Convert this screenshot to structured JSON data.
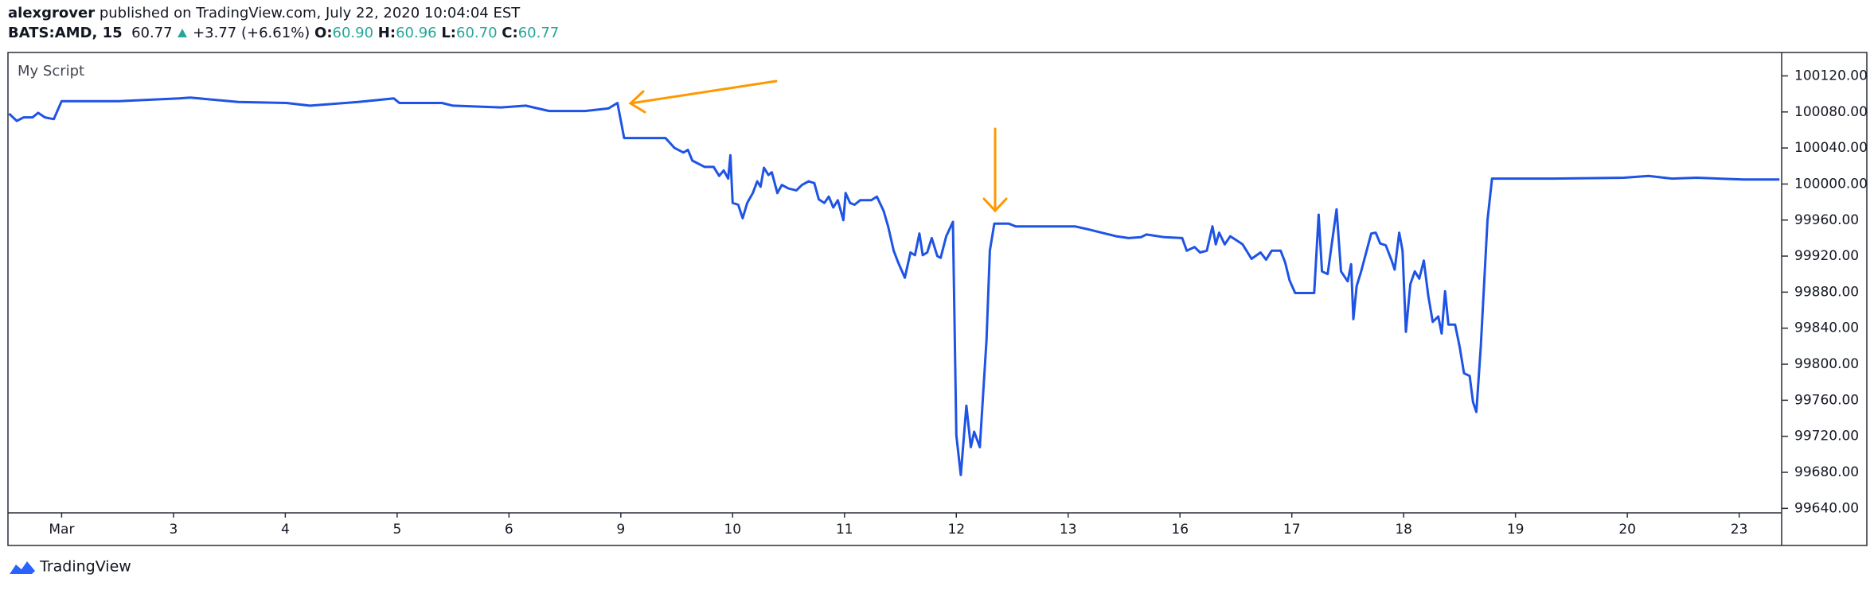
{
  "header": {
    "author": "alexgrover",
    "published": "published on TradingView.com, July 22, 2020 10:04:04 EST",
    "symbol": "BATS:AMD, 15",
    "last": "60.77",
    "change": "+3.77 (+6.61%)",
    "ohlc": [
      {
        "label": "O:",
        "value": "60.90"
      },
      {
        "label": "H:",
        "value": "60.96"
      },
      {
        "label": "L:",
        "value": "60.70"
      },
      {
        "label": "C:",
        "value": "60.77"
      }
    ]
  },
  "footer": {
    "brand": "TradingView"
  },
  "chart_data": {
    "type": "line",
    "x": [
      -0.47,
      -0.4,
      -0.34,
      -0.26,
      -0.21,
      -0.15,
      -0.07,
      0,
      0.51,
      1.05,
      1.15,
      1.58,
      2.01,
      2.22,
      2.65,
      2.97,
      3.02,
      3.4,
      3.5,
      3.93,
      4.15,
      4.36,
      4.68,
      4.89,
      4.97,
      5.03,
      5.4,
      5.48,
      5.56,
      5.6,
      5.64,
      5.75,
      5.83,
      5.88,
      5.92,
      5.96,
      5.98,
      6.0,
      6.05,
      6.09,
      6.13,
      6.18,
      6.22,
      6.25,
      6.28,
      6.32,
      6.35,
      6.4,
      6.44,
      6.5,
      6.57,
      6.62,
      6.68,
      6.73,
      6.77,
      6.82,
      6.86,
      6.9,
      6.94,
      6.99,
      7.01,
      7.05,
      7.09,
      7.14,
      7.24,
      7.29,
      7.35,
      7.39,
      7.44,
      7.48,
      7.54,
      7.59,
      7.63,
      7.67,
      7.7,
      7.74,
      7.78,
      7.83,
      7.86,
      7.91,
      7.97,
      8.0,
      8.04,
      8.09,
      8.13,
      8.16,
      8.21,
      8.27,
      8.3,
      8.34,
      8.47,
      8.53,
      9.06,
      9.17,
      9.33,
      9.43,
      9.54,
      9.65,
      9.7,
      9.86,
      10.02,
      10.06,
      10.13,
      10.18,
      10.24,
      10.29,
      10.32,
      10.35,
      10.4,
      10.45,
      10.56,
      10.64,
      10.72,
      10.77,
      10.82,
      10.9,
      10.94,
      10.98,
      11.03,
      11.2,
      11.24,
      11.27,
      11.32,
      11.4,
      11.44,
      11.5,
      11.53,
      11.55,
      11.58,
      11.62,
      11.71,
      11.75,
      11.79,
      11.84,
      11.89,
      11.92,
      11.96,
      11.99,
      12.02,
      12.06,
      12.1,
      12.14,
      12.18,
      12.22,
      12.26,
      12.31,
      12.34,
      12.37,
      12.4,
      12.46,
      12.5,
      12.54,
      12.59,
      12.62,
      12.65,
      12.69,
      12.75,
      12.79,
      13.33,
      13.97,
      14.19,
      14.4,
      14.62,
      15.04,
      15.36
    ],
    "series": [
      {
        "name": "My Script",
        "color": "#1e53e5",
        "values": [
          100078,
          100070,
          100074,
          100074,
          100079,
          100074,
          100072,
          100092,
          100092,
          100095,
          100096,
          100091,
          100090,
          100087,
          100091,
          100095,
          100090,
          100090,
          100087,
          100085,
          100087,
          100081,
          100081,
          100084,
          100090,
          100051,
          100051,
          100040,
          100035,
          100038,
          100026,
          100019,
          100019,
          100009,
          100015,
          100006,
          100032,
          99979,
          99977,
          99962,
          99979,
          99990,
          100003,
          99997,
          100018,
          100010,
          100013,
          99990,
          99999,
          99995,
          99993,
          99999,
          100003,
          100001,
          99983,
          99979,
          99986,
          99974,
          99982,
          99960,
          99990,
          99979,
          99977,
          99982,
          99982,
          99986,
          99970,
          99953,
          99926,
          99913,
          99896,
          99924,
          99921,
          99945,
          99921,
          99924,
          99940,
          99920,
          99918,
          99942,
          99958,
          99721,
          99677,
          99754,
          99708,
          99725,
          99708,
          99827,
          99926,
          99956,
          99956,
          99953,
          99953,
          99950,
          99945,
          99942,
          99940,
          99941,
          99944,
          99941,
          99940,
          99926,
          99930,
          99924,
          99926,
          99953,
          99933,
          99946,
          99933,
          99942,
          99933,
          99917,
          99924,
          99916,
          99926,
          99926,
          99913,
          99893,
          99879,
          99879,
          99966,
          99903,
          99900,
          99972,
          99903,
          99892,
          99911,
          99850,
          99887,
          99903,
          99945,
          99946,
          99934,
          99932,
          99916,
          99905,
          99946,
          99926,
          99836,
          99889,
          99903,
          99895,
          99915,
          99876,
          99847,
          99853,
          99834,
          99881,
          99844,
          99844,
          99820,
          99790,
          99787,
          99758,
          99747,
          99820,
          99960,
          100006,
          100006,
          100007,
          100009,
          100006,
          100007,
          100005,
          100005
        ]
      }
    ],
    "xlim": [
      -0.48,
      15.38
    ],
    "xticks": [
      {
        "value": 0,
        "label": "Mar"
      },
      {
        "value": 1,
        "label": "3"
      },
      {
        "value": 2,
        "label": "4"
      },
      {
        "value": 3,
        "label": "5"
      },
      {
        "value": 4,
        "label": "6"
      },
      {
        "value": 5,
        "label": "9"
      },
      {
        "value": 6,
        "label": "10"
      },
      {
        "value": 7,
        "label": "11"
      },
      {
        "value": 8,
        "label": "12"
      },
      {
        "value": 9,
        "label": "13"
      },
      {
        "value": 10,
        "label": "16"
      },
      {
        "value": 11,
        "label": "17"
      },
      {
        "value": 12,
        "label": "18"
      },
      {
        "value": 13,
        "label": "19"
      },
      {
        "value": 14,
        "label": "20"
      },
      {
        "value": 15,
        "label": "23"
      }
    ],
    "ylim": [
      99635,
      100146
    ],
    "yticks": [
      {
        "value": 99640,
        "label": "99640.00"
      },
      {
        "value": 99680,
        "label": "99680.00"
      },
      {
        "value": 99720,
        "label": "99720.00"
      },
      {
        "value": 99760,
        "label": "99760.00"
      },
      {
        "value": 99800,
        "label": "99800.00"
      },
      {
        "value": 99840,
        "label": "99840.00"
      },
      {
        "value": 99880,
        "label": "99880.00"
      },
      {
        "value": 99920,
        "label": "99920.00"
      },
      {
        "value": 99960,
        "label": "99960.00"
      },
      {
        "value": 100000,
        "label": "100000.00"
      },
      {
        "value": 100040,
        "label": "100040.00"
      },
      {
        "value": 100080,
        "label": "100080.00"
      },
      {
        "value": 100120,
        "label": "100120.00"
      }
    ],
    "grid": false
  }
}
